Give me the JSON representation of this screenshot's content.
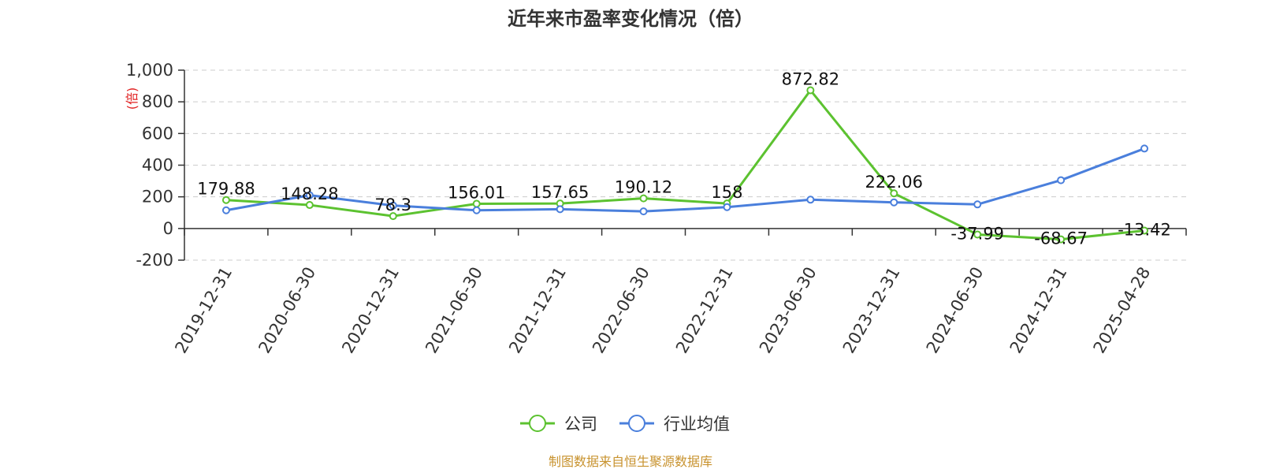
{
  "chart_data": {
    "type": "line",
    "title": "近年来市盈率变化情况（倍）",
    "ylabel": "(倍)",
    "categories": [
      "2019-12-31",
      "2020-06-30",
      "2020-12-31",
      "2021-06-30",
      "2021-12-31",
      "2022-06-30",
      "2022-12-31",
      "2023-06-30",
      "2023-12-31",
      "2024-06-30",
      "2024-12-31",
      "2025-04-28"
    ],
    "ylim": [
      -200,
      1000
    ],
    "yticks": [
      -200,
      0,
      200,
      400,
      600,
      800,
      1000
    ],
    "ytick_labels": [
      "-200",
      "0",
      "200",
      "400",
      "600",
      "800",
      "1,000"
    ],
    "grid": true,
    "legend_position": "bottom-center",
    "series": [
      {
        "name": "公司",
        "color": "#5cc230",
        "values": [
          179.88,
          148.28,
          78.3,
          156.01,
          157.65,
          190.12,
          158,
          872.82,
          222.06,
          -37.99,
          -68.67,
          -13.42
        ],
        "labels": [
          "179.88",
          "148.28",
          "78.3",
          "156.01",
          "157.65",
          "190.12",
          "158",
          "872.82",
          "222.06",
          "-37.99",
          "-68.67",
          "-13.42"
        ]
      },
      {
        "name": "行业均值",
        "color": "#4a7fdc",
        "values": [
          115,
          210,
          145,
          115,
          122,
          108,
          135,
          182,
          165,
          152,
          305,
          505
        ]
      }
    ]
  },
  "source": {
    "text": "制图数据来自恒生聚源数据库",
    "color": "#c8932f"
  },
  "unit_color": "#e02020"
}
